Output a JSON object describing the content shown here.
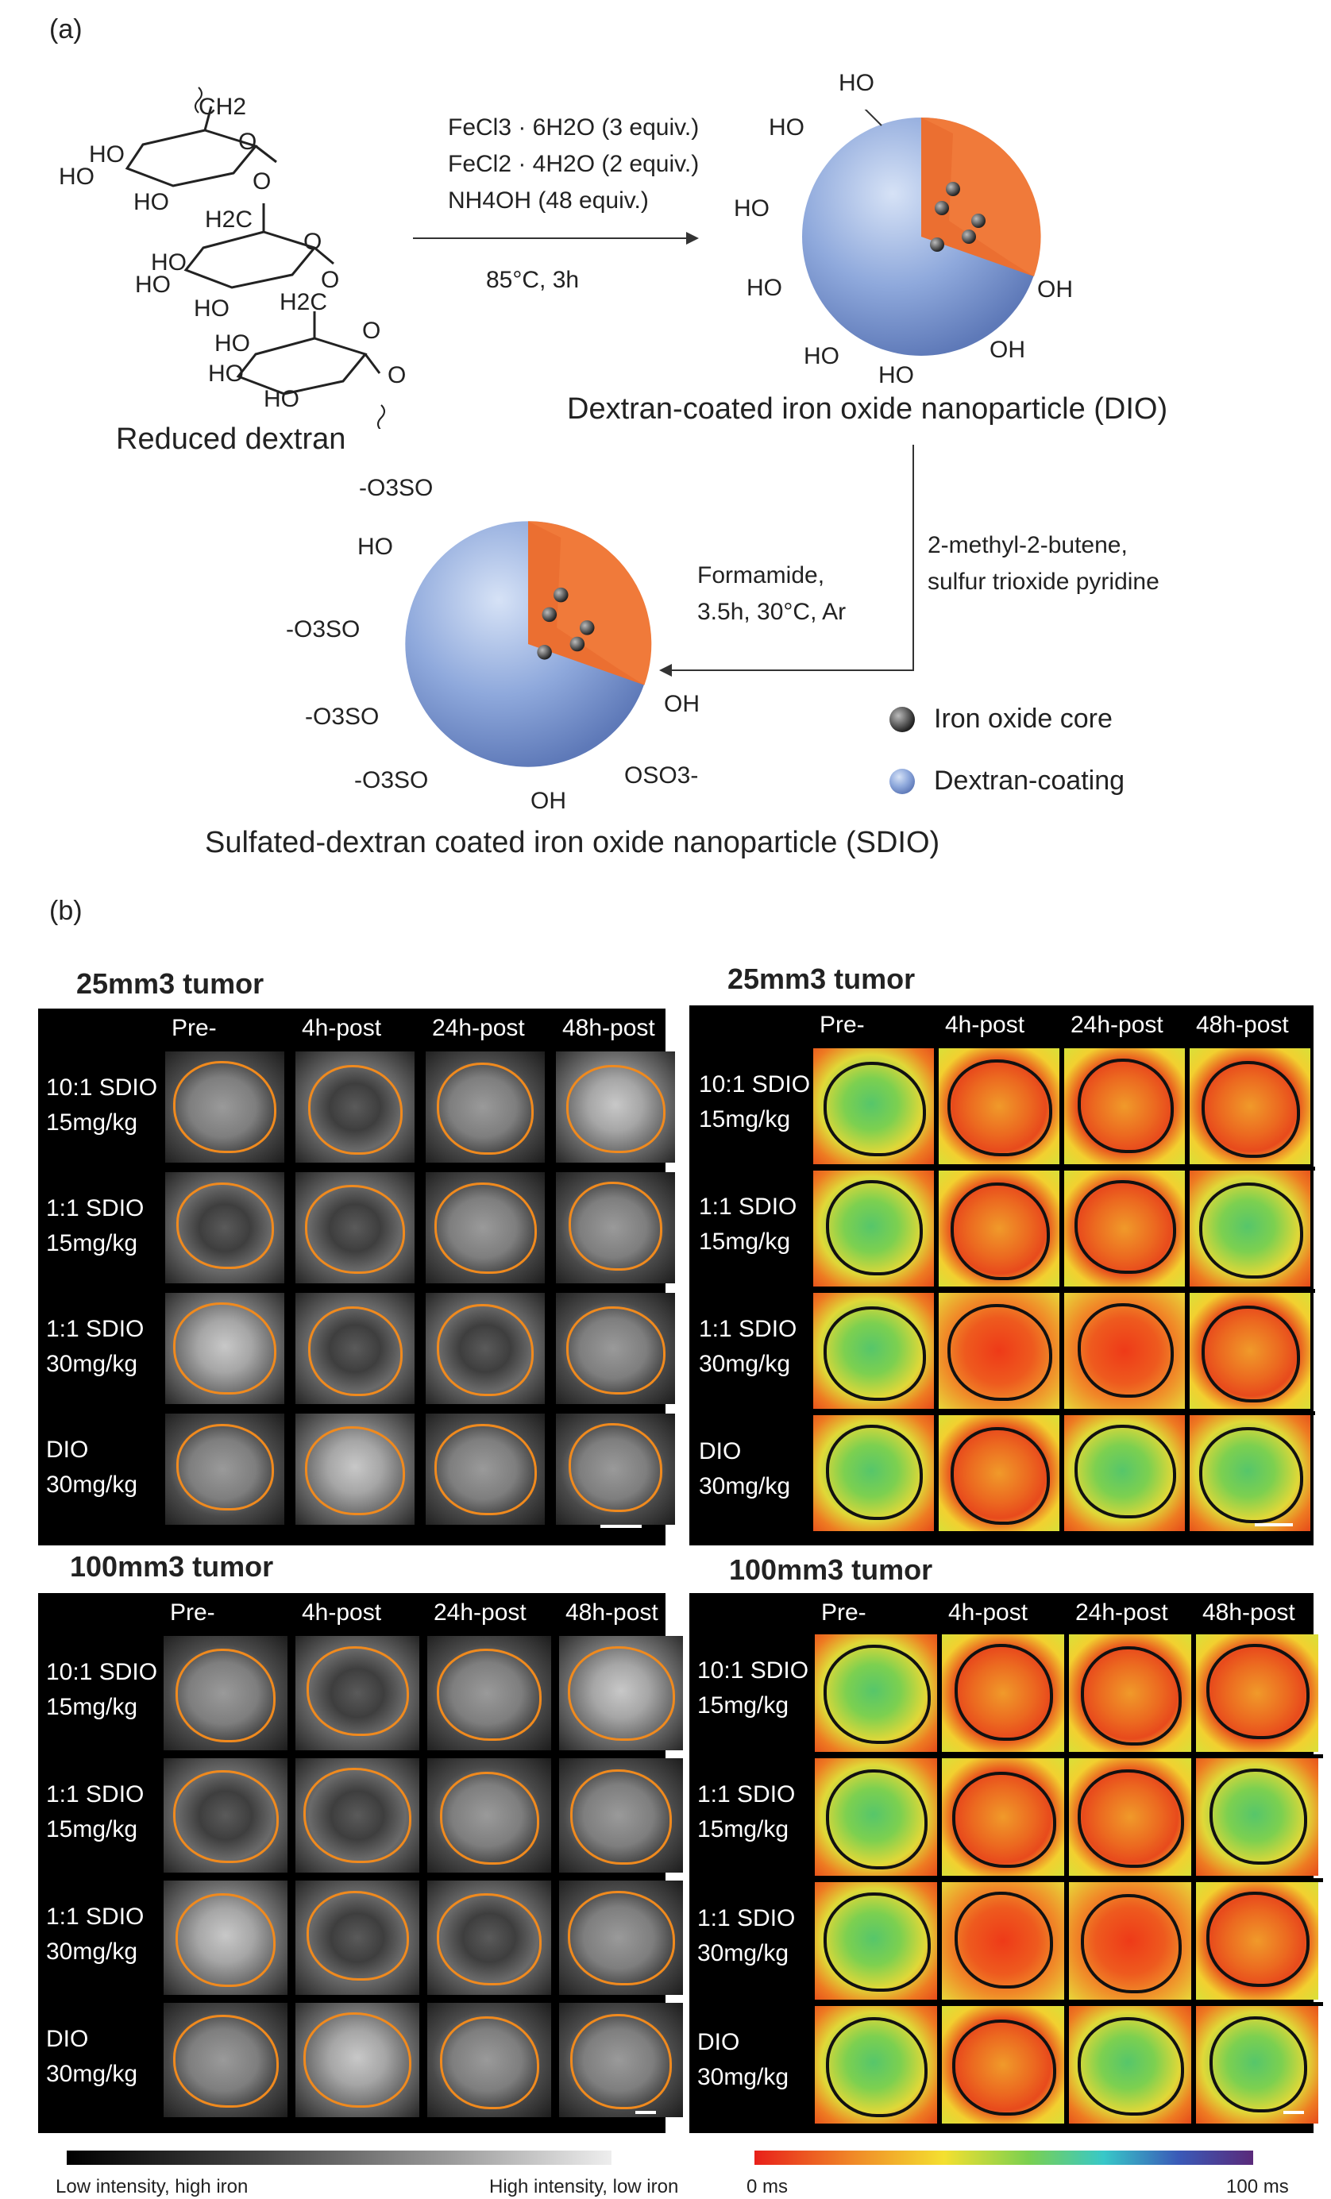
{
  "panel_a": {
    "label": "(a)",
    "dextran": {
      "ch2": "CH2",
      "ho1": "HO",
      "ho2": "HO",
      "ho3": "HO",
      "o1": "O",
      "o2": "O",
      "h2c1": "H2C",
      "ho4": "HO",
      "ho5": "HO",
      "ho6": "HO",
      "o3": "O",
      "o4": "O",
      "h2c2": "H2C",
      "ho7": "HO",
      "ho8": "HO",
      "ho9": "HO",
      "o5": "O",
      "o6": "O",
      "caption": "Reduced dextran"
    },
    "reaction1": {
      "line1": "FeCl3 · 6H2O (3 equiv.)",
      "line2": "FeCl2 · 4H2O (2 equiv.)",
      "line3": "NH4OH (48 equiv.)",
      "conditions": "85°C, 3h"
    },
    "dio": {
      "ho_labels": [
        "HO",
        "HO",
        "HO",
        "HO",
        "HO",
        "HO"
      ],
      "oh_labels": [
        "OH",
        "OH"
      ],
      "caption": "Dextran-coated iron oxide nanoparticle (DIO)"
    },
    "reaction2": {
      "reagent1": "2-methyl-2-butene,",
      "reagent2": "sulfur trioxide pyridine",
      "cond1": "Formamide,",
      "cond2": "3.5h, 30°C, Ar"
    },
    "sdio": {
      "labels": [
        "-O3SO",
        "HO",
        "-O3SO",
        "-O3SO",
        "-O3SO",
        "OH",
        "OSO3-",
        "OH"
      ],
      "caption": "Sulfated-dextran coated iron oxide nanoparticle (SDIO)"
    },
    "legend": {
      "core": "Iron oxide core",
      "coating": "Dextran-coating"
    }
  },
  "panel_b": {
    "label": "(b)",
    "columns": [
      "Pre-",
      "4h-post",
      "24h-post",
      "48h-post"
    ],
    "rows": [
      {
        "l1": "10:1 SDIO",
        "l2": "15mg/kg"
      },
      {
        "l1": "1:1 SDIO",
        "l2": "15mg/kg"
      },
      {
        "l1": "1:1 SDIO",
        "l2": "30mg/kg"
      },
      {
        "l1": "DIO",
        "l2": "30mg/kg"
      }
    ],
    "titles": {
      "tl": "25mm3 tumor",
      "tr": "25mm3 tumor",
      "bl": "100mm3 tumor",
      "br": "100mm3 tumor"
    },
    "gray_bar": {
      "low": "Low intensity, high iron",
      "high": "High intensity, low iron"
    },
    "color_bar": {
      "low": "0 ms",
      "high": "100 ms"
    }
  },
  "colors": {
    "sphere_blue": "#8fa9dc",
    "core_orange": "#f07a3a",
    "outline_orange": "#f08a1e",
    "outline_black": "#111111"
  }
}
